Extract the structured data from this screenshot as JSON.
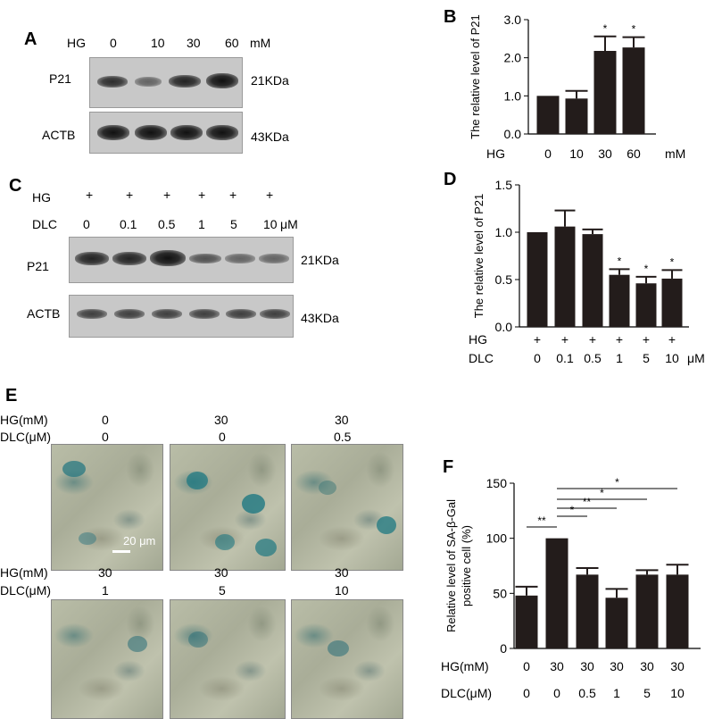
{
  "panelA": {
    "label": "A",
    "hg_label": "HG",
    "lanes": [
      "0",
      "10",
      "30",
      "60"
    ],
    "unit": "mM",
    "rows": [
      {
        "name": "P21",
        "kda": "21KDa",
        "intensity": [
          0.85,
          0.6,
          0.9,
          1.0
        ]
      },
      {
        "name": "ACTB",
        "kda": "43KDa",
        "intensity": [
          1.0,
          1.0,
          1.0,
          1.0
        ]
      }
    ]
  },
  "panelC": {
    "label": "C",
    "hg_label": "HG",
    "hg_marks": [
      "+",
      "+",
      "+",
      "+",
      "+",
      "+"
    ],
    "dlc_label": "DLC",
    "lanes": [
      "0",
      "0.1",
      "0.5",
      "1",
      "5",
      "10"
    ],
    "unit": "μM",
    "rows": [
      {
        "name": "P21",
        "kda": "21KDa",
        "intensity": [
          0.95,
          0.95,
          1.0,
          0.7,
          0.6,
          0.6
        ]
      },
      {
        "name": "ACTB",
        "kda": "43KDa",
        "intensity": [
          0.8,
          0.8,
          0.8,
          0.8,
          0.8,
          0.8
        ]
      }
    ]
  },
  "panelE": {
    "label": "E",
    "scale_bar": "20 μm",
    "rows": [
      {
        "hg_label": "HG(mM)",
        "dlc_label": "DLC(μM)",
        "hg": [
          "0",
          "30",
          "30"
        ],
        "dlc": [
          "0",
          "0",
          "0.5"
        ]
      },
      {
        "hg_label": "HG(mM)",
        "dlc_label": "DLC(μM)",
        "hg": [
          "30",
          "30",
          "30"
        ],
        "dlc": [
          "1",
          "5",
          "10"
        ]
      }
    ]
  },
  "chart_data": [
    {
      "panel": "B",
      "type": "bar",
      "ylabel": "The relative level of  P21",
      "ylim": [
        0,
        3.0
      ],
      "yticks": [
        "0.0",
        "1.0",
        "2.0",
        "3.0"
      ],
      "row1_label": "HG",
      "categories": [
        "0",
        "10",
        "30",
        "60"
      ],
      "unit": "mM",
      "values": [
        1.0,
        0.93,
        2.18,
        2.27
      ],
      "errors": [
        0.0,
        0.2,
        0.38,
        0.27
      ],
      "significance": [
        "",
        "",
        "*",
        "*"
      ],
      "bar_color": "#231c1b"
    },
    {
      "panel": "D",
      "type": "bar",
      "ylabel": "The relative level of P21",
      "ylim": [
        0,
        1.5
      ],
      "yticks": [
        "0.0",
        "0.5",
        "1.0",
        "1.5"
      ],
      "row1_label": "HG",
      "row1": [
        "+",
        "+",
        "+",
        "+",
        "+",
        "+"
      ],
      "row2_label": "DLC",
      "categories": [
        "0",
        "0.1",
        "0.5",
        "1",
        "5",
        "10"
      ],
      "unit": "μM",
      "values": [
        1.0,
        1.06,
        0.98,
        0.55,
        0.46,
        0.51
      ],
      "errors": [
        0.0,
        0.17,
        0.05,
        0.06,
        0.07,
        0.09
      ],
      "significance": [
        "",
        "",
        "",
        "*",
        "*",
        "*"
      ],
      "bar_color": "#231c1b"
    },
    {
      "panel": "F",
      "type": "bar",
      "ylabel_lines": [
        "Relative level of SA-β-Gal",
        "positive cell (%)"
      ],
      "ylim": [
        0,
        150
      ],
      "yticks": [
        "0",
        "50",
        "100",
        "150"
      ],
      "row1_label": "HG(mM)",
      "row1": [
        "0",
        "30",
        "30",
        "30",
        "30",
        "30"
      ],
      "row2_label": "DLC(μM)",
      "categories": [
        "0",
        "0",
        "0.5",
        "1",
        "5",
        "10"
      ],
      "values": [
        48,
        100,
        67,
        46,
        67,
        67
      ],
      "errors": [
        8,
        0,
        6,
        8,
        4,
        9
      ],
      "brackets": [
        {
          "from": 0,
          "to": 1,
          "label": "**"
        },
        {
          "from": 1,
          "to": 2,
          "label": "*"
        },
        {
          "from": 1,
          "to": 3,
          "label": "**"
        },
        {
          "from": 1,
          "to": 4,
          "label": "*"
        },
        {
          "from": 1,
          "to": 5,
          "label": "*"
        }
      ],
      "bar_color": "#231c1b"
    }
  ]
}
